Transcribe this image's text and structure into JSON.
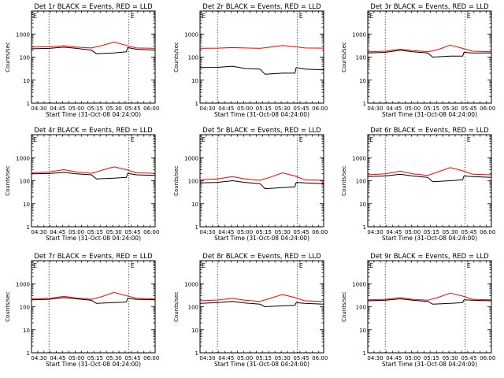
{
  "page": {
    "y_ticks": [
      "1000",
      "100",
      "10",
      "1"
    ],
    "x_ticks": [
      "04:30",
      "04:45",
      "05:00",
      "05:15",
      "05:30",
      "05:45",
      "06:00"
    ]
  },
  "chart_data": [
    {
      "type": "line",
      "title": "Det 1r BLACK = Events, RED = LLD",
      "ylabel": "Counts/sec",
      "xlabel": "Start Time (31-Oct-08 04:24:00)",
      "xlim": [
        "04:24",
        "06:03"
      ],
      "ylim": [
        1,
        10000
      ],
      "yscale": "log",
      "markers": [
        "04:38",
        "05:42"
      ],
      "flags": [
        "E",
        "E"
      ],
      "series": [
        {
          "color": "#000000",
          "x": [
            "04:24",
            "04:38",
            "04:50",
            "05:00",
            "05:12",
            "05:16",
            "05:30",
            "05:40",
            "05:41",
            "05:48",
            "06:03"
          ],
          "y": [
            230,
            240,
            270,
            240,
            200,
            140,
            150,
            170,
            260,
            220,
            200
          ]
        },
        {
          "color": "#ff0000",
          "x": [
            "04:24",
            "04:38",
            "04:50",
            "05:00",
            "05:12",
            "05:20",
            "05:30",
            "05:40",
            "05:48",
            "06:03"
          ],
          "y": [
            270,
            280,
            310,
            270,
            250,
            310,
            450,
            320,
            250,
            240
          ]
        }
      ]
    },
    {
      "type": "line",
      "title": "Det 2r BLACK = Events, RED = LLD",
      "ylabel": "Counts/sec",
      "xlabel": "Start Time (31-Oct-08 04:24:00)",
      "xlim": [
        "04:24",
        "06:03"
      ],
      "ylim": [
        1,
        10000
      ],
      "yscale": "log",
      "markers": [
        "04:38",
        "05:42"
      ],
      "flags": [
        "E",
        "E"
      ],
      "series": [
        {
          "color": "#000000",
          "x": [
            "04:24",
            "04:38",
            "04:50",
            "05:00",
            "05:12",
            "05:16",
            "05:30",
            "05:40",
            "05:41",
            "05:48",
            "06:03"
          ],
          "y": [
            35,
            36,
            40,
            32,
            30,
            18,
            20,
            20,
            35,
            30,
            28
          ]
        },
        {
          "color": "#ff0000",
          "x": [
            "04:24",
            "04:38",
            "04:50",
            "05:00",
            "05:12",
            "05:20",
            "05:30",
            "05:40",
            "05:48",
            "06:03"
          ],
          "y": [
            240,
            245,
            260,
            250,
            240,
            270,
            320,
            280,
            250,
            245
          ]
        }
      ]
    },
    {
      "type": "line",
      "title": "Det 3r BLACK = Events, RED = LLD",
      "ylabel": "Counts/sec",
      "xlabel": "Start Time (31-Oct-08 04:24:00)",
      "xlim": [
        "04:24",
        "06:03"
      ],
      "ylim": [
        1,
        10000
      ],
      "yscale": "log",
      "markers": [
        "04:38",
        "05:42"
      ],
      "flags": [
        "E",
        "E"
      ],
      "series": [
        {
          "color": "#000000",
          "x": [
            "04:24",
            "04:38",
            "04:50",
            "05:00",
            "05:12",
            "05:16",
            "05:30",
            "05:40",
            "05:41",
            "05:48",
            "06:03"
          ],
          "y": [
            150,
            160,
            200,
            170,
            150,
            100,
            110,
            110,
            160,
            150,
            150
          ]
        },
        {
          "color": "#ff0000",
          "x": [
            "04:24",
            "04:38",
            "04:50",
            "05:00",
            "05:12",
            "05:20",
            "05:30",
            "05:40",
            "05:48",
            "06:03"
          ],
          "y": [
            170,
            180,
            220,
            190,
            170,
            210,
            330,
            240,
            180,
            170
          ]
        }
      ]
    },
    {
      "type": "line",
      "title": "Det 4r BLACK = Events, RED = LLD",
      "ylabel": "Counts/sec",
      "xlabel": "Start Time (31-Oct-08 04:24:00)",
      "xlim": [
        "04:24",
        "06:03"
      ],
      "ylim": [
        1,
        10000
      ],
      "yscale": "log",
      "markers": [
        "04:38",
        "05:42"
      ],
      "flags": [
        "E",
        "E"
      ],
      "series": [
        {
          "color": "#000000",
          "x": [
            "04:24",
            "04:38",
            "04:50",
            "05:00",
            "05:12",
            "05:16",
            "05:30",
            "05:40",
            "05:41",
            "05:48",
            "06:03"
          ],
          "y": [
            200,
            205,
            230,
            200,
            180,
            120,
            130,
            140,
            210,
            180,
            170
          ]
        },
        {
          "color": "#ff0000",
          "x": [
            "04:24",
            "04:38",
            "04:50",
            "05:00",
            "05:12",
            "05:20",
            "05:30",
            "05:40",
            "05:48",
            "06:03"
          ],
          "y": [
            220,
            240,
            300,
            240,
            210,
            280,
            400,
            300,
            220,
            210
          ]
        }
      ]
    },
    {
      "type": "line",
      "title": "Det 5r BLACK = Events, RED = LLD",
      "ylabel": "Counts/sec",
      "xlabel": "Start Time (31-Oct-08 04:24:00)",
      "xlim": [
        "04:24",
        "06:03"
      ],
      "ylim": [
        1,
        10000
      ],
      "yscale": "log",
      "markers": [
        "04:38",
        "05:42"
      ],
      "flags": [
        "E",
        "E"
      ],
      "series": [
        {
          "color": "#000000",
          "x": [
            "04:24",
            "04:38",
            "04:50",
            "05:00",
            "05:12",
            "05:16",
            "05:30",
            "05:40",
            "05:41",
            "05:48",
            "06:03"
          ],
          "y": [
            80,
            85,
            100,
            85,
            75,
            45,
            50,
            55,
            85,
            80,
            75
          ]
        },
        {
          "color": "#ff0000",
          "x": [
            "04:24",
            "04:38",
            "04:50",
            "05:00",
            "05:12",
            "05:20",
            "05:30",
            "05:40",
            "05:48",
            "06:03"
          ],
          "y": [
            110,
            120,
            150,
            120,
            105,
            140,
            220,
            160,
            110,
            105
          ]
        }
      ]
    },
    {
      "type": "line",
      "title": "Det 6r BLACK = Events, RED = LLD",
      "ylabel": "Counts/sec",
      "xlabel": "Start Time (31-Oct-08 04:24:00)",
      "xlim": [
        "04:24",
        "06:03"
      ],
      "ylim": [
        1,
        10000
      ],
      "yscale": "log",
      "markers": [
        "04:38",
        "05:42"
      ],
      "flags": [
        "E",
        "E"
      ],
      "series": [
        {
          "color": "#000000",
          "x": [
            "04:24",
            "04:38",
            "04:50",
            "05:00",
            "05:12",
            "05:16",
            "05:30",
            "05:40",
            "05:41",
            "05:48",
            "06:03"
          ],
          "y": [
            150,
            160,
            190,
            160,
            140,
            90,
            100,
            110,
            160,
            150,
            140
          ]
        },
        {
          "color": "#ff0000",
          "x": [
            "04:24",
            "04:38",
            "04:50",
            "05:00",
            "05:12",
            "05:20",
            "05:30",
            "05:40",
            "05:48",
            "06:03"
          ],
          "y": [
            180,
            200,
            260,
            200,
            170,
            240,
            370,
            270,
            190,
            180
          ]
        }
      ]
    },
    {
      "type": "line",
      "title": "Det 7r BLACK = Events, RED = LLD",
      "ylabel": "Counts/sec",
      "xlabel": "Start Time (31-Oct-08 04:24:00)",
      "xlim": [
        "04:24",
        "06:03"
      ],
      "ylim": [
        1,
        10000
      ],
      "yscale": "log",
      "markers": [
        "04:38",
        "05:42"
      ],
      "flags": [
        "E",
        "E"
      ],
      "series": [
        {
          "color": "#000000",
          "x": [
            "04:24",
            "04:38",
            "04:50",
            "05:00",
            "05:12",
            "05:16",
            "05:30",
            "05:40",
            "05:41",
            "05:48",
            "06:03"
          ],
          "y": [
            200,
            210,
            250,
            220,
            190,
            140,
            150,
            160,
            230,
            210,
            200
          ]
        },
        {
          "color": "#ff0000",
          "x": [
            "04:24",
            "04:38",
            "04:50",
            "05:00",
            "05:12",
            "05:20",
            "05:30",
            "05:40",
            "05:48",
            "06:03"
          ],
          "y": [
            220,
            230,
            280,
            240,
            210,
            270,
            420,
            300,
            230,
            220
          ]
        }
      ]
    },
    {
      "type": "line",
      "title": "Det 8r BLACK = Events, RED = LLD",
      "ylabel": "Counts/sec",
      "xlabel": "Start Time (31-Oct-08 04:24:00)",
      "xlim": [
        "04:24",
        "06:03"
      ],
      "ylim": [
        1,
        10000
      ],
      "yscale": "log",
      "markers": [
        "04:38",
        "05:42"
      ],
      "flags": [
        "E",
        "E"
      ],
      "series": [
        {
          "color": "#000000",
          "x": [
            "04:24",
            "04:38",
            "04:50",
            "05:00",
            "05:12",
            "05:16",
            "05:30",
            "05:40",
            "05:41",
            "05:48",
            "06:03"
          ],
          "y": [
            140,
            150,
            170,
            145,
            130,
            100,
            110,
            115,
            150,
            140,
            130
          ]
        },
        {
          "color": "#ff0000",
          "x": [
            "04:24",
            "04:38",
            "04:50",
            "05:00",
            "05:12",
            "05:20",
            "05:30",
            "05:40",
            "05:48",
            "06:03"
          ],
          "y": [
            180,
            195,
            230,
            190,
            170,
            230,
            340,
            250,
            180,
            170
          ]
        }
      ]
    },
    {
      "type": "line",
      "title": "Det 9r BLACK = Events, RED = LLD",
      "ylabel": "Counts/sec",
      "xlabel": "Start Time (31-Oct-08 04:24:00)",
      "xlim": [
        "04:24",
        "06:03"
      ],
      "ylim": [
        1,
        10000
      ],
      "yscale": "log",
      "markers": [
        "04:38",
        "05:42"
      ],
      "flags": [
        "E",
        "E"
      ],
      "series": [
        {
          "color": "#000000",
          "x": [
            "04:24",
            "04:38",
            "04:50",
            "05:00",
            "05:12",
            "05:16",
            "05:30",
            "05:40",
            "05:41",
            "05:48",
            "06:03"
          ],
          "y": [
            180,
            190,
            220,
            190,
            170,
            130,
            140,
            150,
            200,
            190,
            180
          ]
        },
        {
          "color": "#ff0000",
          "x": [
            "04:24",
            "04:38",
            "04:50",
            "05:00",
            "05:12",
            "05:20",
            "05:30",
            "05:40",
            "05:48",
            "06:03"
          ],
          "y": [
            200,
            210,
            250,
            210,
            190,
            250,
            390,
            290,
            210,
            200
          ]
        }
      ]
    }
  ]
}
